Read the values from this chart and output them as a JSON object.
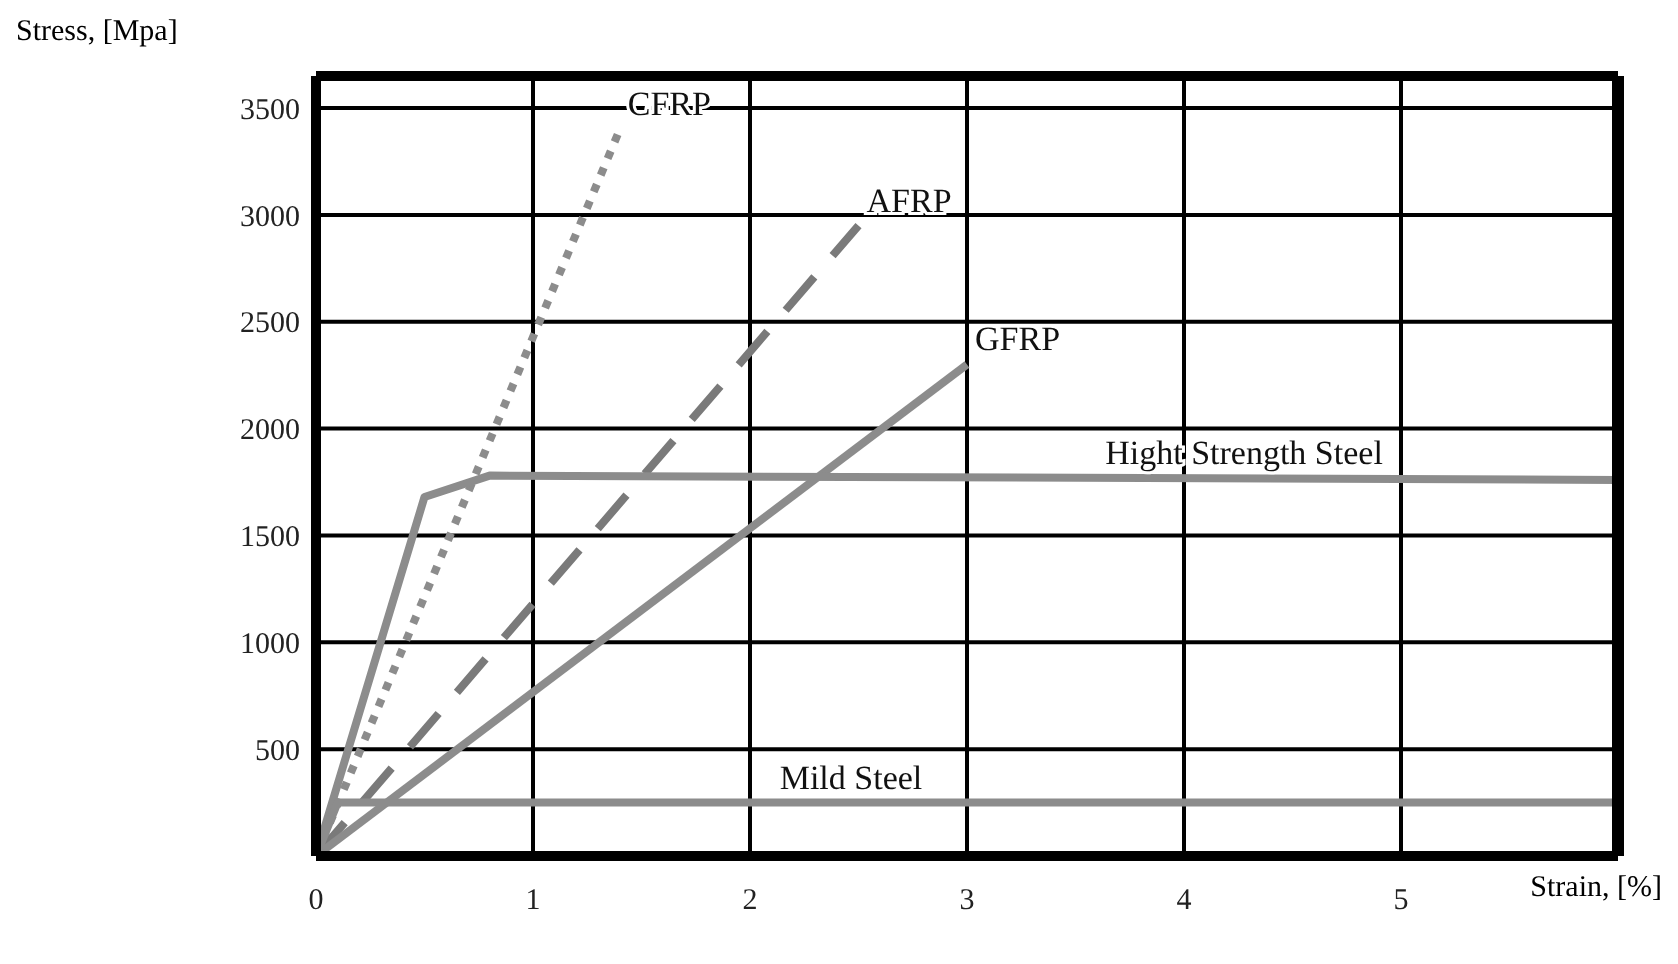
{
  "chart_data": {
    "type": "line",
    "xlabel": "Strain, [%]",
    "ylabel": "Stress, [Mpa]",
    "xlim": [
      0,
      6
    ],
    "xticks": [
      0,
      1,
      2,
      3,
      4,
      5
    ],
    "ylim": [
      0,
      3650
    ],
    "yticks": [
      500,
      1000,
      1500,
      2000,
      2500,
      3000,
      3500
    ],
    "grid": true,
    "marker": "none",
    "series": [
      {
        "color": "#8c8c8c",
        "line_style": "dotted",
        "x": [
          0,
          1.4
        ],
        "values": [
          0,
          3400
        ]
      },
      {
        "color": "#7a7a7a",
        "line_style": "dashed",
        "x": [
          0,
          2.5
        ],
        "values": [
          0,
          2950
        ]
      },
      {
        "color": "#8c8c8c",
        "line_style": "solid",
        "x": [
          0,
          3.0
        ],
        "values": [
          0,
          2300
        ]
      },
      {
        "color": "#8c8c8c",
        "line_style": "solid",
        "x": [
          0,
          0.5,
          0.8,
          6
        ],
        "values": [
          0,
          1680,
          1780,
          1760
        ]
      },
      {
        "color": "#8c8c8c",
        "line_style": "solid",
        "x": [
          0,
          0.1,
          6
        ],
        "values": [
          0,
          250,
          250
        ]
      }
    ],
    "annotations": [
      {
        "text": "CFRP",
        "x": 1.4,
        "y": 3400
      },
      {
        "text": "AFRP",
        "x": 2.5,
        "y": 2950
      },
      {
        "text": "GFRP",
        "x": 3.0,
        "y": 2300
      },
      {
        "text": "Hight Strength Steel",
        "x": 3.6,
        "y": 1770
      },
      {
        "text": "Mild Steel",
        "x": 2.1,
        "y": 250
      }
    ]
  }
}
